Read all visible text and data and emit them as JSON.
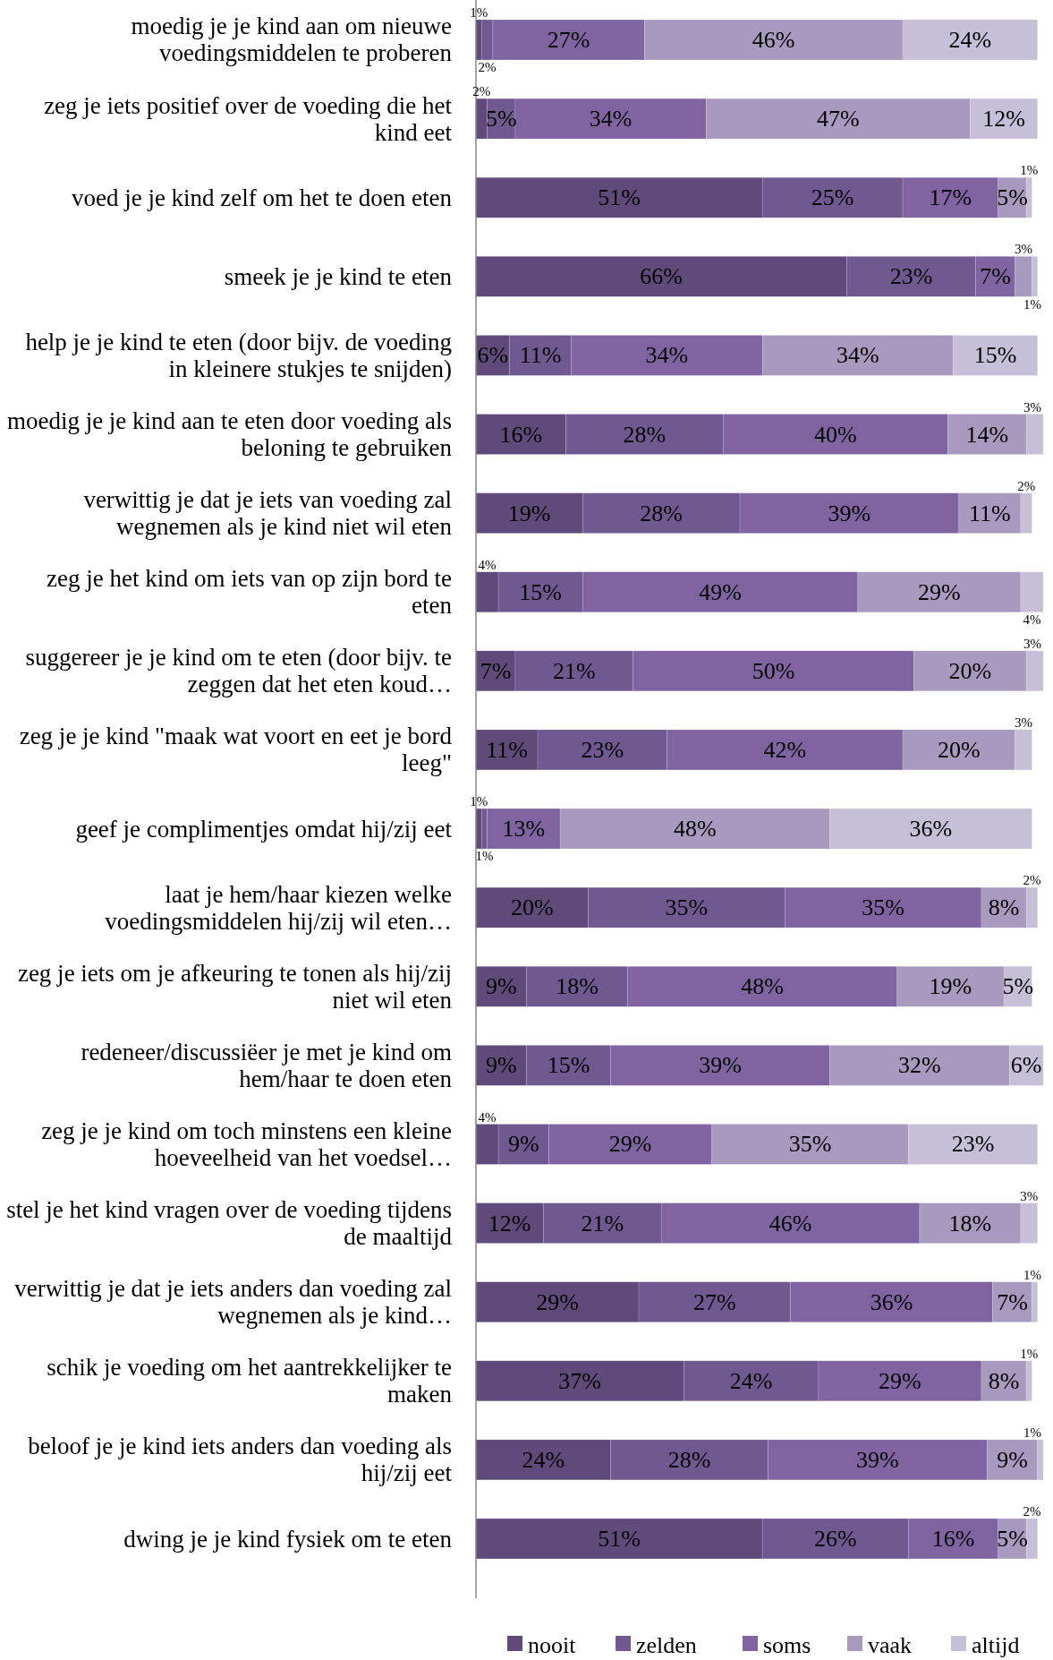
{
  "chart_data": {
    "type": "bar",
    "orientation": "horizontal",
    "stacked": true,
    "legend": "bottom",
    "tick_labels": "y",
    "categories": [
      "moedig je je kind aan om nieuwe voedingsmiddelen te proberen",
      "zeg je iets positief over de voeding die het kind eet",
      "voed je je kind zelf om het te doen eten",
      "smeek je je kind te eten",
      "help je je kind te eten (door bijv. de voeding in kleinere  stukjes te snijden)",
      "moedig je je kind aan te eten door voeding als beloning te gebruiken",
      "verwittig je dat je iets van voeding zal wegnemen als je kind niet wil eten",
      "zeg je het kind om iets van op zijn bord te eten",
      "suggereer je je kind om te eten (door bijv. te zeggen dat het eten koud…",
      "zeg je je kind \"maak wat voort en eet je bord leeg\"",
      "geef je complimentjes omdat hij/zij  eet",
      "laat je hem/haar kiezen welke voedingsmiddelen hij/zij  wil eten…",
      "zeg je iets om je afkeuring te tonen als hij/zij  niet wil eten",
      "redeneer/discussiëer je met je kind om hem/haar te doen eten",
      "zeg je je kind om toch minstens een kleine hoeveelheid van het voedsel…",
      "stel je het kind vragen over de voeding tijdens de maaltijd",
      "verwittig je dat je iets anders dan voeding zal wegnemen als je kind…",
      "schik je voeding om het aantrekkelijker te maken",
      "beloof je je kind iets anders dan voeding als hij/zij  eet",
      "dwing je je kind fysiek om te eten"
    ],
    "series": [
      {
        "name": "nooit",
        "color": "#5f4a7a",
        "values": [
          1,
          2,
          51,
          66,
          6,
          16,
          19,
          4,
          7,
          11,
          1,
          20,
          9,
          9,
          4,
          12,
          29,
          37,
          24,
          51
        ],
        "value_labels": [
          "1%",
          "2%",
          "51%",
          "66%",
          "6%",
          "16%",
          "19%",
          "4%",
          "7%",
          "11%",
          "1%",
          "20%",
          "9%",
          "9%",
          "4%",
          "12%",
          "29%",
          "37%",
          "24%",
          "51%"
        ]
      },
      {
        "name": "zelden",
        "color": "#705990",
        "values": [
          2,
          5,
          25,
          23,
          11,
          28,
          28,
          15,
          21,
          23,
          1,
          35,
          18,
          15,
          9,
          21,
          27,
          24,
          28,
          26
        ],
        "value_labels": [
          "2%",
          "5%",
          "25%",
          "23%",
          "11%",
          "28%",
          "28%",
          "15%",
          "21%",
          "23%",
          "1%",
          "35%",
          "18%",
          "15%",
          "9%",
          "21%",
          "27%",
          "24%",
          "28%",
          "26%"
        ]
      },
      {
        "name": "soms",
        "color": "#8064a2",
        "values": [
          27,
          34,
          17,
          7,
          34,
          40,
          39,
          49,
          50,
          42,
          13,
          35,
          48,
          39,
          29,
          46,
          36,
          29,
          39,
          16
        ],
        "value_labels": [
          "27%",
          "34%",
          "17%",
          "7%",
          "34%",
          "40%",
          "39%",
          "49%",
          "50%",
          "42%",
          "13%",
          "35%",
          "48%",
          "39%",
          "29%",
          "46%",
          "36%",
          "29%",
          "39%",
          "16%"
        ]
      },
      {
        "name": "vaak",
        "color": "#a899bf",
        "values": [
          46,
          47,
          5,
          3,
          34,
          14,
          11,
          29,
          20,
          20,
          48,
          8,
          19,
          32,
          35,
          18,
          7,
          8,
          9,
          5
        ],
        "value_labels": [
          "46%",
          "47%",
          "5%",
          "3%",
          "34%",
          "14%",
          "11%",
          "29%",
          "20%",
          "20%",
          "48%",
          "8%",
          "19%",
          "32%",
          "35%",
          "18%",
          "7%",
          "8%",
          "9%",
          "5%"
        ]
      },
      {
        "name": "altijd",
        "color": "#c7bed8",
        "values": [
          24,
          12,
          1,
          1,
          15,
          3,
          2,
          4,
          3,
          3,
          36,
          2,
          5,
          6,
          23,
          3,
          1,
          1,
          1,
          2
        ],
        "value_labels": [
          "24%",
          "12%",
          "1%",
          "1%",
          "15%",
          "3%",
          "2%",
          "4%",
          "3%",
          "3%",
          "36%",
          "2%",
          "5%",
          "6%",
          "23%",
          "3%",
          "1%",
          "1%",
          "1%",
          "2%"
        ]
      }
    ]
  }
}
